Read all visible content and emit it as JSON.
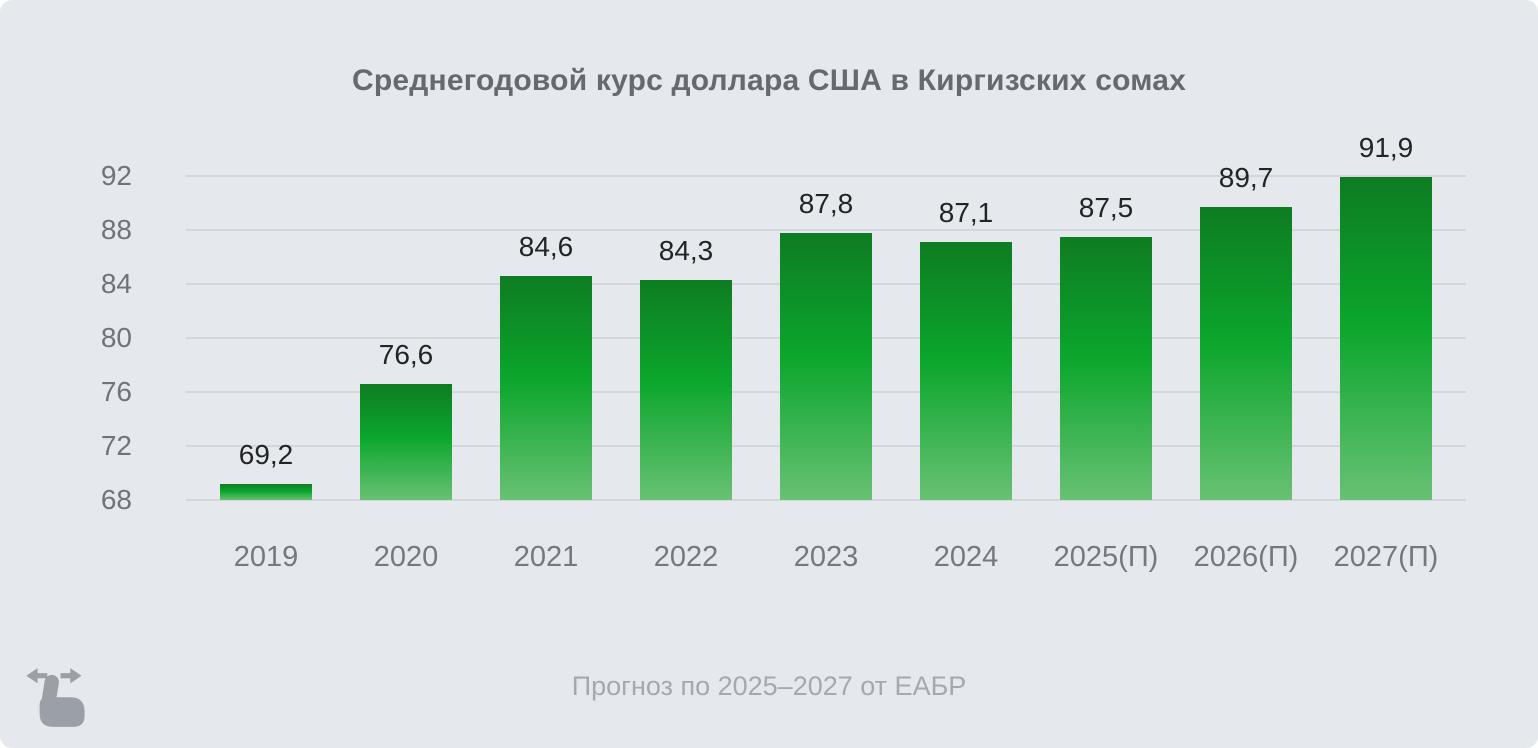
{
  "card": {
    "title": "Среднегодовой курс доллара США в Киргизских сомах",
    "caption": "Прогноз по 2025–2027 от ЕАБР"
  },
  "chart_data": {
    "type": "bar",
    "title": "Среднегодовой курс доллара США в Киргизских сомах",
    "categories": [
      "2019",
      "2020",
      "2021",
      "2022",
      "2023",
      "2024",
      "2025(П)",
      "2026(П)",
      "2027(П)"
    ],
    "values": [
      69.2,
      76.6,
      84.6,
      84.3,
      87.8,
      87.1,
      87.5,
      89.7,
      91.9
    ],
    "value_labels": [
      "69,2",
      "76,6",
      "84,6",
      "84,3",
      "87,8",
      "87,1",
      "87,5",
      "89,7",
      "91,9"
    ],
    "ylabel": "",
    "xlabel": "",
    "ylim": [
      68,
      92
    ],
    "yticks": [
      68,
      72,
      76,
      80,
      84,
      88,
      92
    ],
    "grid": true,
    "legend_position": "none",
    "annotation": "Прогноз по 2025–2027 от ЕАБР",
    "colors": {
      "bar_gradient_top": "#0e7c22",
      "bar_gradient_mid": "#0ba62c",
      "bar_gradient_bottom": "#68c174",
      "gridline": "#d2d7db",
      "title_text": "#66696d",
      "axis_label_text": "#75787c",
      "value_label_text": "#222426",
      "caption_text": "#a3a9ae",
      "background": "#e5e9ed",
      "icon": "#9aa0a6"
    }
  },
  "icons": {
    "gesture": "swipe-horizontal-gesture-icon"
  }
}
